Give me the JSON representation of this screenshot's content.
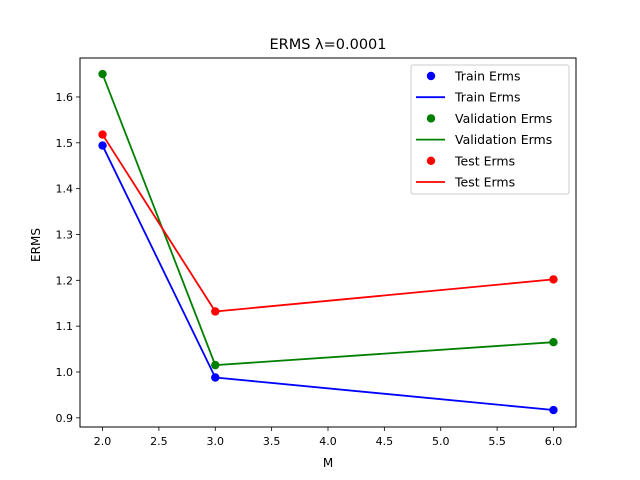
{
  "chart_data": {
    "type": "line",
    "title": "ERMS λ=0.0001",
    "xlabel": "M",
    "ylabel": "ERMS",
    "xlim": [
      1.8,
      6.2
    ],
    "ylim": [
      0.88,
      1.685
    ],
    "xticks": [
      2.0,
      2.5,
      3.0,
      3.5,
      4.0,
      4.5,
      5.0,
      5.5,
      6.0
    ],
    "xtick_labels": [
      "2.0",
      "2.5",
      "3.0",
      "3.5",
      "4.0",
      "4.5",
      "5.0",
      "5.5",
      "6.0"
    ],
    "yticks": [
      0.9,
      1.0,
      1.1,
      1.2,
      1.3,
      1.4,
      1.5,
      1.6
    ],
    "ytick_labels": [
      "0.9",
      "1.0",
      "1.1",
      "1.2",
      "1.3",
      "1.4",
      "1.5",
      "1.6"
    ],
    "grid": false,
    "legend_position": "top-right",
    "legend": [
      {
        "label": "Train Erms",
        "kind": "marker",
        "color": "#0000ff"
      },
      {
        "label": "Train Erms",
        "kind": "line",
        "color": "#0000ff"
      },
      {
        "label": "Validation Erms",
        "kind": "marker",
        "color": "#008000"
      },
      {
        "label": "Validation Erms",
        "kind": "line",
        "color": "#008000"
      },
      {
        "label": "Test Erms",
        "kind": "marker",
        "color": "#ff0000"
      },
      {
        "label": "Test Erms",
        "kind": "line",
        "color": "#ff0000"
      }
    ],
    "x": [
      2,
      3,
      6
    ],
    "series": [
      {
        "name": "Train Erms",
        "color": "#0000ff",
        "values": [
          1.494,
          0.988,
          0.917
        ]
      },
      {
        "name": "Validation Erms",
        "color": "#008000",
        "values": [
          1.65,
          1.015,
          1.065
        ]
      },
      {
        "name": "Test Erms",
        "color": "#ff0000",
        "values": [
          1.518,
          1.132,
          1.202
        ]
      }
    ]
  }
}
